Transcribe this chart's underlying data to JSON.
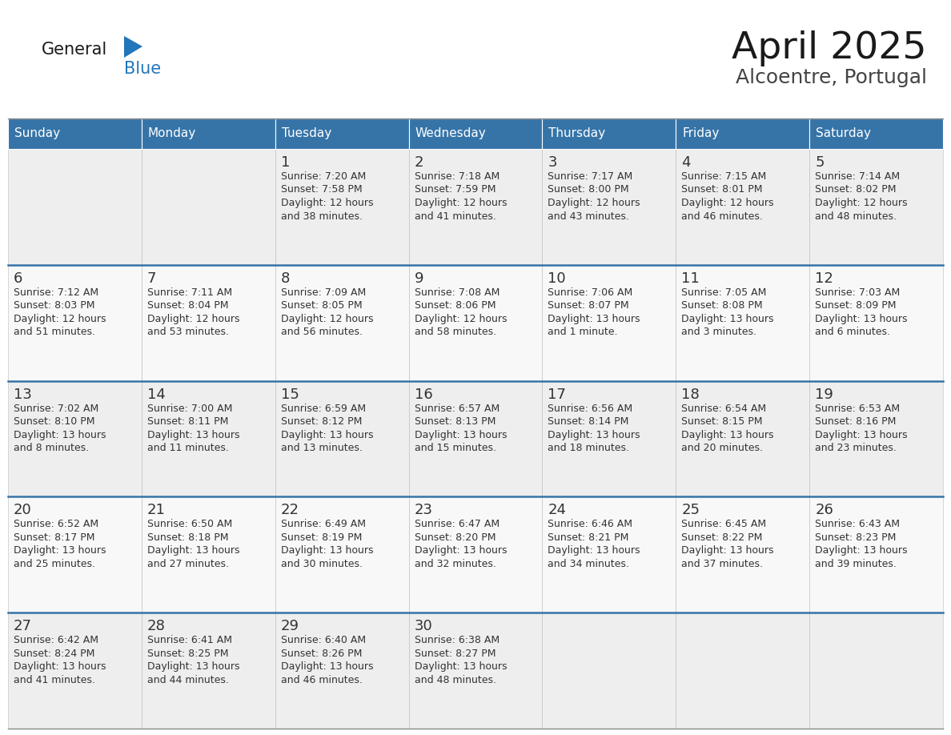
{
  "title": "April 2025",
  "subtitle": "Alcoentre, Portugal",
  "header_bg": "#3674A8",
  "header_text": "#FFFFFF",
  "cell_bg_odd": "#EEEEEE",
  "cell_bg_even": "#F8F8F8",
  "text_color": "#333333",
  "grid_color": "#BBBBBB",
  "week_sep_color": "#3674A8",
  "days_of_week": [
    "Sunday",
    "Monday",
    "Tuesday",
    "Wednesday",
    "Thursday",
    "Friday",
    "Saturday"
  ],
  "logo_general_color": "#1A1A1A",
  "logo_blue_color": "#2276BB",
  "calendar": [
    [
      {
        "day": "",
        "sunrise": "",
        "sunset": "",
        "daylight": ""
      },
      {
        "day": "",
        "sunrise": "",
        "sunset": "",
        "daylight": ""
      },
      {
        "day": "1",
        "sunrise": "7:20 AM",
        "sunset": "7:58 PM",
        "daylight": "12 hours and 38 minutes."
      },
      {
        "day": "2",
        "sunrise": "7:18 AM",
        "sunset": "7:59 PM",
        "daylight": "12 hours and 41 minutes."
      },
      {
        "day": "3",
        "sunrise": "7:17 AM",
        "sunset": "8:00 PM",
        "daylight": "12 hours and 43 minutes."
      },
      {
        "day": "4",
        "sunrise": "7:15 AM",
        "sunset": "8:01 PM",
        "daylight": "12 hours and 46 minutes."
      },
      {
        "day": "5",
        "sunrise": "7:14 AM",
        "sunset": "8:02 PM",
        "daylight": "12 hours and 48 minutes."
      }
    ],
    [
      {
        "day": "6",
        "sunrise": "7:12 AM",
        "sunset": "8:03 PM",
        "daylight": "12 hours and 51 minutes."
      },
      {
        "day": "7",
        "sunrise": "7:11 AM",
        "sunset": "8:04 PM",
        "daylight": "12 hours and 53 minutes."
      },
      {
        "day": "8",
        "sunrise": "7:09 AM",
        "sunset": "8:05 PM",
        "daylight": "12 hours and 56 minutes."
      },
      {
        "day": "9",
        "sunrise": "7:08 AM",
        "sunset": "8:06 PM",
        "daylight": "12 hours and 58 minutes."
      },
      {
        "day": "10",
        "sunrise": "7:06 AM",
        "sunset": "8:07 PM",
        "daylight": "13 hours and 1 minute."
      },
      {
        "day": "11",
        "sunrise": "7:05 AM",
        "sunset": "8:08 PM",
        "daylight": "13 hours and 3 minutes."
      },
      {
        "day": "12",
        "sunrise": "7:03 AM",
        "sunset": "8:09 PM",
        "daylight": "13 hours and 6 minutes."
      }
    ],
    [
      {
        "day": "13",
        "sunrise": "7:02 AM",
        "sunset": "8:10 PM",
        "daylight": "13 hours and 8 minutes."
      },
      {
        "day": "14",
        "sunrise": "7:00 AM",
        "sunset": "8:11 PM",
        "daylight": "13 hours and 11 minutes."
      },
      {
        "day": "15",
        "sunrise": "6:59 AM",
        "sunset": "8:12 PM",
        "daylight": "13 hours and 13 minutes."
      },
      {
        "day": "16",
        "sunrise": "6:57 AM",
        "sunset": "8:13 PM",
        "daylight": "13 hours and 15 minutes."
      },
      {
        "day": "17",
        "sunrise": "6:56 AM",
        "sunset": "8:14 PM",
        "daylight": "13 hours and 18 minutes."
      },
      {
        "day": "18",
        "sunrise": "6:54 AM",
        "sunset": "8:15 PM",
        "daylight": "13 hours and 20 minutes."
      },
      {
        "day": "19",
        "sunrise": "6:53 AM",
        "sunset": "8:16 PM",
        "daylight": "13 hours and 23 minutes."
      }
    ],
    [
      {
        "day": "20",
        "sunrise": "6:52 AM",
        "sunset": "8:17 PM",
        "daylight": "13 hours and 25 minutes."
      },
      {
        "day": "21",
        "sunrise": "6:50 AM",
        "sunset": "8:18 PM",
        "daylight": "13 hours and 27 minutes."
      },
      {
        "day": "22",
        "sunrise": "6:49 AM",
        "sunset": "8:19 PM",
        "daylight": "13 hours and 30 minutes."
      },
      {
        "day": "23",
        "sunrise": "6:47 AM",
        "sunset": "8:20 PM",
        "daylight": "13 hours and 32 minutes."
      },
      {
        "day": "24",
        "sunrise": "6:46 AM",
        "sunset": "8:21 PM",
        "daylight": "13 hours and 34 minutes."
      },
      {
        "day": "25",
        "sunrise": "6:45 AM",
        "sunset": "8:22 PM",
        "daylight": "13 hours and 37 minutes."
      },
      {
        "day": "26",
        "sunrise": "6:43 AM",
        "sunset": "8:23 PM",
        "daylight": "13 hours and 39 minutes."
      }
    ],
    [
      {
        "day": "27",
        "sunrise": "6:42 AM",
        "sunset": "8:24 PM",
        "daylight": "13 hours and 41 minutes."
      },
      {
        "day": "28",
        "sunrise": "6:41 AM",
        "sunset": "8:25 PM",
        "daylight": "13 hours and 44 minutes."
      },
      {
        "day": "29",
        "sunrise": "6:40 AM",
        "sunset": "8:26 PM",
        "daylight": "13 hours and 46 minutes."
      },
      {
        "day": "30",
        "sunrise": "6:38 AM",
        "sunset": "8:27 PM",
        "daylight": "13 hours and 48 minutes."
      },
      {
        "day": "",
        "sunrise": "",
        "sunset": "",
        "daylight": ""
      },
      {
        "day": "",
        "sunrise": "",
        "sunset": "",
        "daylight": ""
      },
      {
        "day": "",
        "sunrise": "",
        "sunset": "",
        "daylight": ""
      }
    ]
  ]
}
